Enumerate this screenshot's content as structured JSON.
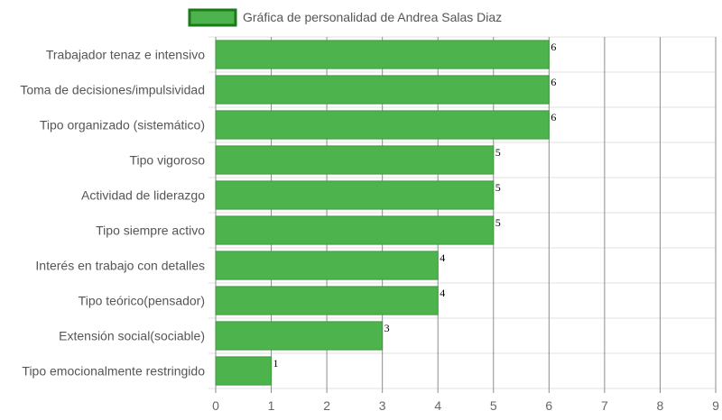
{
  "chart_data": {
    "type": "bar",
    "orientation": "horizontal",
    "legend": {
      "label": "Gráfica de personalidad de Andrea Salas Diaz",
      "position": "top-center"
    },
    "categories": [
      "Trabajador tenaz e intensivo",
      "Toma de decisiones/impulsividad",
      "Tipo organizado (sistemático)",
      "Tipo vigoroso",
      "Actividad de liderazgo",
      "Tipo siempre activo",
      "Interés en trabajo con detalles",
      "Tipo teórico(pensador)",
      "Extensión social(sociable)",
      "Tipo emocionalmente restringido"
    ],
    "values": [
      6,
      6,
      6,
      5,
      5,
      5,
      4,
      4,
      3,
      1
    ],
    "xlim": [
      0,
      9
    ],
    "xticks": [
      "0",
      "1",
      "2",
      "3",
      "4",
      "5",
      "6",
      "7",
      "8",
      "9"
    ],
    "grid": true,
    "data_labels": true,
    "colors": {
      "bar_fill": "#4db34d",
      "bar_border": "#3c9a3c",
      "legend_fill": "#4db34d",
      "legend_border": "#1a7a1a",
      "vertical_grid": "#8c8c8c",
      "horizontal_grid": "#e0e0e0"
    }
  }
}
